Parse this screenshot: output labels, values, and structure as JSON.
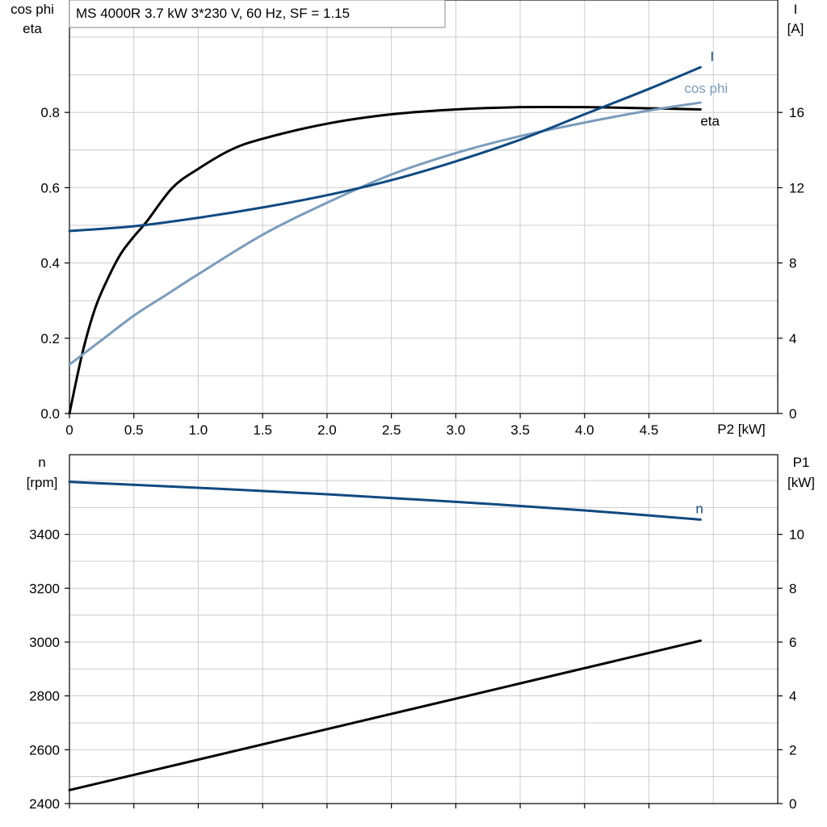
{
  "chart_title": "MS 4000R   3.7 kW   3*230 V, 60 Hz, SF = 1.15",
  "colors": {
    "eta": "#000000",
    "cos_phi": "#7a9cbc",
    "current": "#0f4a80",
    "speed": "#0f4a80",
    "p1": "#000000"
  },
  "chart_data": [
    {
      "type": "line",
      "title": "MS 4000R   3.7 kW   3*230 V, 60 Hz, SF = 1.15",
      "xlabel": "P2 [kW]",
      "ylabel_left": "cos phi\neta",
      "ylabel_right": "I\n[A]",
      "xlim": [
        0,
        5.5
      ],
      "ylim_left": [
        0,
        1.0
      ],
      "ylim_right": [
        0,
        20
      ],
      "x_ticks": [
        "0",
        "0.5",
        "1.0",
        "1.5",
        "2.0",
        "2.5",
        "3.0",
        "3.5",
        "4.0",
        "4.5"
      ],
      "y_ticks_left": [
        "0.0",
        "0.2",
        "0.4",
        "0.6",
        "0.8"
      ],
      "y_ticks_right": [
        "0",
        "4",
        "8",
        "12",
        "16"
      ],
      "grid": true,
      "series": [
        {
          "name": "eta",
          "axis": "left",
          "x": [
            0,
            0.1,
            0.2,
            0.3,
            0.4,
            0.5,
            0.6,
            0.8,
            1.0,
            1.25,
            1.5,
            2.0,
            2.5,
            3.0,
            3.5,
            4.0,
            4.5,
            4.9
          ],
          "y": [
            0.0,
            0.16,
            0.28,
            0.36,
            0.425,
            0.47,
            0.51,
            0.6,
            0.65,
            0.7,
            0.73,
            0.77,
            0.795,
            0.808,
            0.814,
            0.814,
            0.811,
            0.808
          ]
        },
        {
          "name": "cos phi",
          "axis": "left",
          "x": [
            0,
            0.25,
            0.5,
            0.75,
            1.0,
            1.5,
            2.0,
            2.5,
            3.0,
            3.5,
            4.0,
            4.5,
            4.9
          ],
          "y": [
            0.13,
            0.195,
            0.26,
            0.315,
            0.37,
            0.475,
            0.56,
            0.635,
            0.692,
            0.737,
            0.773,
            0.805,
            0.826
          ]
        },
        {
          "name": "I",
          "axis": "right",
          "x": [
            0,
            0.5,
            1.0,
            1.5,
            2.0,
            2.5,
            3.0,
            3.5,
            4.0,
            4.5,
            4.9
          ],
          "y": [
            9.7,
            9.95,
            10.4,
            10.95,
            11.6,
            12.4,
            13.4,
            14.55,
            15.9,
            17.25,
            18.4
          ]
        }
      ]
    },
    {
      "type": "line",
      "xlabel": "",
      "ylabel_left": "n\n[rpm]",
      "ylabel_right": "P1\n[kW]",
      "xlim": [
        0,
        5.5
      ],
      "ylim_left": [
        2400,
        3600
      ],
      "ylim_right": [
        0,
        12
      ],
      "y_ticks_left": [
        "2400",
        "2600",
        "2800",
        "3000",
        "3200",
        "3400"
      ],
      "y_ticks_right": [
        "0",
        "2",
        "4",
        "6",
        "8",
        "10"
      ],
      "grid": true,
      "series": [
        {
          "name": "n",
          "axis": "left",
          "x": [
            0,
            1.0,
            2.0,
            3.0,
            4.0,
            4.9
          ],
          "y": [
            3595,
            3573,
            3549,
            3521,
            3489,
            3455
          ]
        },
        {
          "name": "",
          "axis": "right",
          "x": [
            0,
            4.9
          ],
          "y": [
            0.5,
            6.05
          ]
        }
      ]
    }
  ]
}
